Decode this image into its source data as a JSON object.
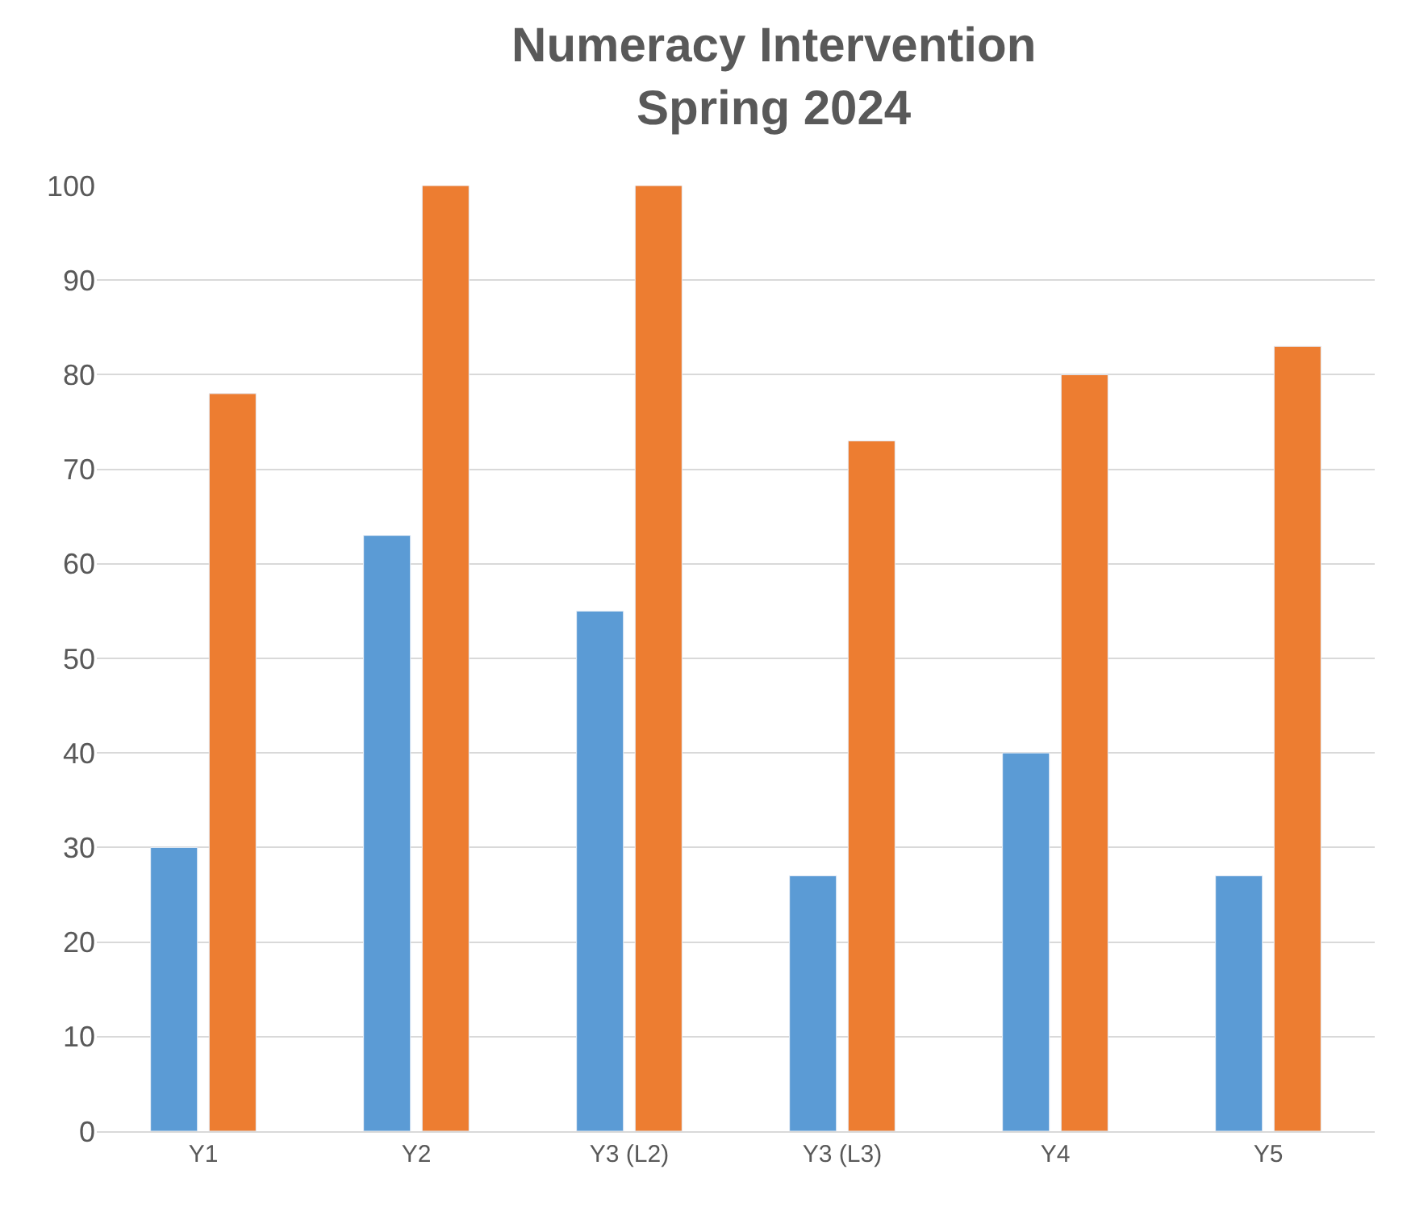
{
  "chart_data": {
    "type": "bar",
    "title": "Numeracy Intervention\nSpring 2024",
    "categories": [
      "Y1",
      "Y2",
      "Y3 (L2)",
      "Y3 (L3)",
      "Y4",
      "Y5"
    ],
    "series": [
      {
        "color": "#5b9bd5",
        "values": [
          30,
          63,
          55,
          27,
          40,
          27
        ]
      },
      {
        "color": "#ed7d31",
        "values": [
          78,
          100,
          100,
          73,
          80,
          83
        ]
      }
    ],
    "ylim": [
      0,
      100
    ],
    "yticks": [
      0,
      10,
      20,
      30,
      40,
      50,
      60,
      70,
      80,
      90,
      100
    ],
    "grid": "y"
  }
}
